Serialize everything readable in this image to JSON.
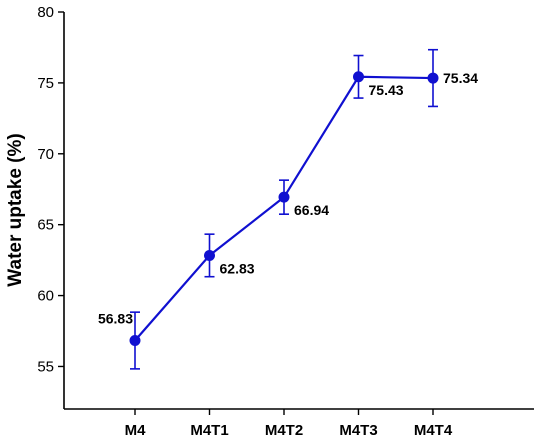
{
  "chart_data": {
    "type": "line",
    "title": "",
    "xlabel": "",
    "ylabel": "Water uptake (%)",
    "categories": [
      "M4",
      "M4T1",
      "M4T2",
      "M4T3",
      "M4T4"
    ],
    "series": [
      {
        "values": [
          56.83,
          62.83,
          66.94,
          75.43,
          75.34
        ],
        "errors": [
          2.0,
          1.5,
          1.2,
          1.5,
          2.0
        ],
        "data_labels": [
          "56.83",
          "62.83",
          "66.94",
          "75.43",
          "75.34"
        ],
        "color": "#1010d0",
        "marker": "circle"
      }
    ],
    "ylim": [
      52,
      80
    ],
    "yticks": [
      55,
      60,
      65,
      70,
      75,
      80
    ],
    "ytick_labels": [
      "55",
      "60",
      "65",
      "70",
      "75",
      "80"
    ],
    "grid": false,
    "legend": "none"
  }
}
